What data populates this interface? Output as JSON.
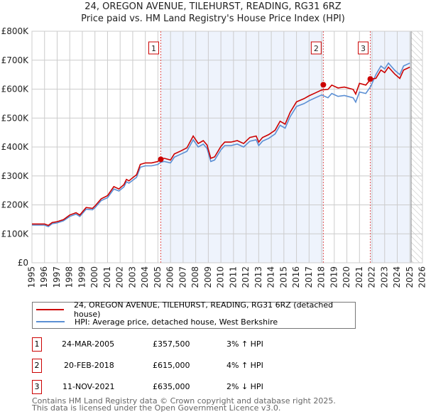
{
  "chart_data": {
    "type": "line",
    "title": "24, OREGON AVENUE, TILEHURST, READING, RG31 6RZ",
    "subtitle": "Price paid vs. HM Land Registry's House Price Index (HPI)",
    "xlim": [
      1995,
      2026
    ],
    "ylim": [
      0,
      800000
    ],
    "yticks": [
      {
        "v": 0,
        "label": "£0"
      },
      {
        "v": 100000,
        "label": "£100K"
      },
      {
        "v": 200000,
        "label": "£200K"
      },
      {
        "v": 300000,
        "label": "£300K"
      },
      {
        "v": 400000,
        "label": "£400K"
      },
      {
        "v": 500000,
        "label": "£500K"
      },
      {
        "v": 600000,
        "label": "£600K"
      },
      {
        "v": 700000,
        "label": "£700K"
      },
      {
        "v": 800000,
        "label": "£800K"
      }
    ],
    "xticks": [
      "1995",
      "1996",
      "1997",
      "1998",
      "1999",
      "2000",
      "2001",
      "2002",
      "2003",
      "2004",
      "2005",
      "2006",
      "2007",
      "2008",
      "2009",
      "2010",
      "2011",
      "2012",
      "2013",
      "2014",
      "2015",
      "2016",
      "2017",
      "2018",
      "2019",
      "2020",
      "2021",
      "2022",
      "2023",
      "2024",
      "2025",
      "2026"
    ],
    "grid": true,
    "data_end": 2025.1,
    "x": [
      1995.0,
      1996.0,
      1996.3,
      1996.6,
      1997.0,
      1997.5,
      1998.0,
      1998.5,
      1998.8,
      1999.3,
      1999.8,
      2000.0,
      2000.5,
      2001.0,
      2001.5,
      2001.9,
      2002.3,
      2002.5,
      2002.7,
      2003.0,
      2003.3,
      2003.6,
      2004.0,
      2004.5,
      2005.0,
      2005.2,
      2005.5,
      2006.0,
      2006.3,
      2006.8,
      2007.3,
      2007.8,
      2008.2,
      2008.6,
      2008.9,
      2009.2,
      2009.5,
      2010.0,
      2010.3,
      2010.8,
      2011.3,
      2011.8,
      2012.3,
      2012.8,
      2013.0,
      2013.3,
      2013.8,
      2014.3,
      2014.7,
      2015.1,
      2015.5,
      2016.0,
      2016.6,
      2017.0,
      2017.5,
      2018.0,
      2018.5,
      2018.8,
      2019.3,
      2019.8,
      2020.5,
      2020.7,
      2021.0,
      2021.5,
      2021.9,
      2022.3,
      2022.7,
      2023.0,
      2023.3,
      2023.8,
      2024.2,
      2024.5,
      2025.0
    ],
    "series": [
      {
        "name": "24, OREGON AVENUE, TILEHURST, READING, RG31 6RZ (detached house)",
        "color": "#cc0000",
        "values": [
          134,
          134,
          129,
          139,
          142,
          149,
          165,
          173,
          165,
          191,
          188,
          196,
          221,
          232,
          263,
          255,
          270,
          288,
          283,
          294,
          304,
          340,
          345,
          345,
          350,
          358,
          361,
          355,
          376,
          386,
          397,
          438,
          412,
          422,
          407,
          361,
          366,
          402,
          417,
          417,
          422,
          412,
          433,
          438,
          417,
          433,
          443,
          458,
          489,
          479,
          520,
          556,
          567,
          577,
          587,
          597,
          599,
          614,
          604,
          607,
          599,
          583,
          620,
          614,
          635,
          637,
          666,
          657,
          676,
          652,
          637,
          666,
          676
        ]
      },
      {
        "name": "HPI: Average price, detached house, West Berkshire",
        "color": "#5b8fd4",
        "values": [
          130,
          130,
          125,
          135,
          138,
          145,
          160,
          168,
          160,
          185,
          183,
          190,
          215,
          225,
          255,
          248,
          262,
          280,
          275,
          285,
          295,
          330,
          335,
          335,
          340,
          347,
          350,
          345,
          365,
          375,
          385,
          425,
          400,
          410,
          395,
          350,
          355,
          390,
          405,
          405,
          410,
          400,
          420,
          425,
          405,
          420,
          430,
          445,
          475,
          465,
          505,
          540,
          550,
          560,
          570,
          580,
          570,
          585,
          575,
          578,
          570,
          555,
          590,
          585,
          610,
          650,
          680,
          670,
          690,
          665,
          650,
          680,
          690
        ]
      }
    ],
    "value_unit": "thousands GBP",
    "sales": [
      {
        "n": "1",
        "x": 2005.23,
        "price": 357500,
        "date": "24-MAR-2005",
        "price_label": "£357,500",
        "hpi": "3% ↑ HPI"
      },
      {
        "n": "2",
        "x": 2018.13,
        "price": 615000,
        "date": "20-FEB-2018",
        "price_label": "£615,000",
        "hpi": "4% ↑ HPI"
      },
      {
        "n": "3",
        "x": 2021.86,
        "price": 635000,
        "date": "11-NOV-2021",
        "price_label": "£635,000",
        "hpi": "2% ↓ HPI"
      }
    ],
    "colors": {
      "shade": "#eef3fc",
      "grid": "#cccccc",
      "sale_line": "#e05050"
    }
  },
  "footer": {
    "line1": "Contains HM Land Registry data © Crown copyright and database right 2025.",
    "line2": "This data is licensed under the Open Government Licence v3.0."
  }
}
